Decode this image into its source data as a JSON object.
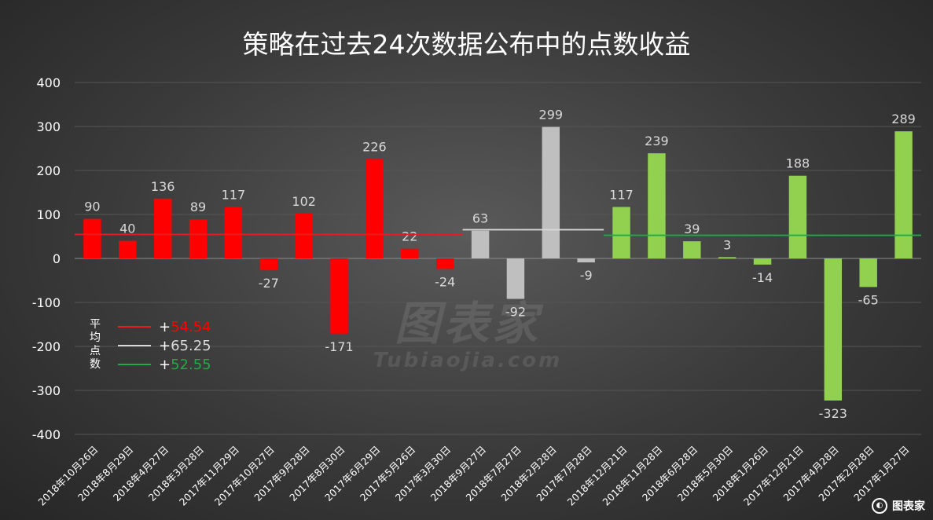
{
  "chart_data": {
    "type": "bar",
    "title": "策略在过去24次数据公布中的点数收益",
    "ylim": [
      -400,
      400
    ],
    "yticks": [
      "400",
      "300",
      "200",
      "100",
      "0",
      "-100",
      "-200",
      "-300",
      "-400"
    ],
    "grid": true,
    "categories": [
      "2018年10月26日",
      "2018年8月29日",
      "2018年4月27日",
      "2018年3月28日",
      "2017年11月29日",
      "2017年10月27日",
      "2017年9月28日",
      "2017年8月30日",
      "2017年6月29日",
      "2017年5月26日",
      "2017年3月30日",
      "2018年9月27日",
      "2018年7月27日",
      "2018年2月28日",
      "2017年7月28日",
      "2018年12月21日",
      "2018年11月28日",
      "2018年6月28日",
      "2018年5月30日",
      "2018年1月26日",
      "2017年12月21日",
      "2017年4月28日",
      "2017年2月28日",
      "2017年1月27日"
    ],
    "values": [
      90,
      40,
      136,
      89,
      117,
      -27,
      102,
      -171,
      226,
      22,
      -24,
      63,
      -92,
      299,
      -9,
      117,
      239,
      39,
      3,
      -14,
      188,
      -323,
      -65,
      289
    ],
    "groups": [
      {
        "start": 0,
        "end": 10,
        "color": "#ff0000",
        "avg": 54.54
      },
      {
        "start": 11,
        "end": 14,
        "color": "#bfbfbf",
        "avg": 65.25
      },
      {
        "start": 15,
        "end": 23,
        "color": "#92d050",
        "avg": 52.55
      }
    ],
    "avg_line_colors": [
      "#e81c1c",
      "#d9d9d9",
      "#1faa4a"
    ]
  },
  "legend": {
    "title": "平均点数",
    "items": [
      {
        "plus": "+",
        "value": "54.54",
        "color": "#ff0000",
        "line_color": "#e81c1c"
      },
      {
        "plus": "+",
        "value": "65.25",
        "color": "#d9d9d9",
        "line_color": "#d9d9d9"
      },
      {
        "plus": "+",
        "value": "52.55",
        "color": "#1faa4a",
        "line_color": "#1faa4a"
      }
    ]
  },
  "watermark": {
    "main": "图表家",
    "sub": "Tubiaojia.com"
  },
  "logo": {
    "text": "图表家"
  }
}
